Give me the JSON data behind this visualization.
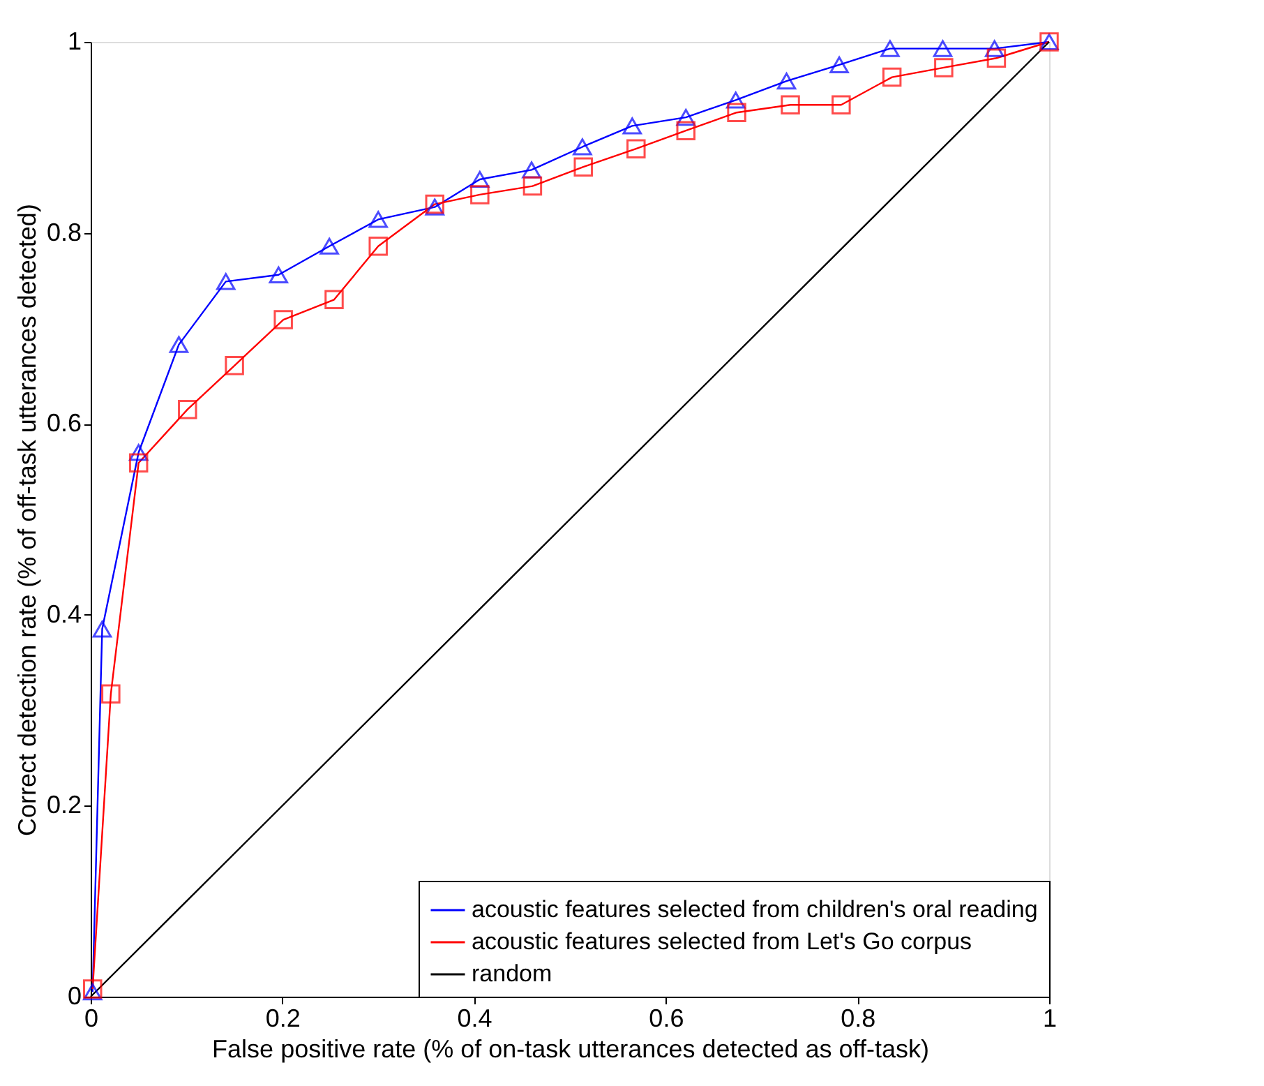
{
  "chart_data": {
    "type": "line",
    "xlabel": "False positive rate (% of on-task utterances detected as off-task)",
    "ylabel": "Correct detection rate (% of off-task utterances detected)",
    "xlim": [
      0,
      1
    ],
    "ylim": [
      0,
      1
    ],
    "xticks": [
      0,
      0.2,
      0.4,
      0.6,
      0.8,
      1
    ],
    "yticks": [
      0,
      0.2,
      0.4,
      0.6,
      0.8,
      1
    ],
    "grid": false,
    "legend": "bottom right",
    "series": [
      {
        "name": "acoustic features selected from children's oral reading",
        "color": "#0000ff",
        "marker": "triangle",
        "x": [
          0.002,
          0.012,
          0.05,
          0.092,
          0.141,
          0.196,
          0.249,
          0.3,
          0.359,
          0.406,
          0.46,
          0.513,
          0.565,
          0.621,
          0.673,
          0.726,
          0.781,
          0.834,
          0.889,
          0.943,
          1
        ],
        "values": [
          0.005,
          0.385,
          0.57,
          0.683,
          0.749,
          0.756,
          0.786,
          0.814,
          0.827,
          0.856,
          0.866,
          0.89,
          0.912,
          0.921,
          0.939,
          0.959,
          0.976,
          0.993,
          0.993,
          0.993,
          1
        ]
      },
      {
        "name": "acoustic features selected from Let's Go corpus",
        "color": "#ff0000",
        "marker": "square",
        "x": [
          0.002,
          0.021,
          0.05,
          0.101,
          0.15,
          0.201,
          0.254,
          0.3,
          0.359,
          0.406,
          0.461,
          0.514,
          0.569,
          0.621,
          0.674,
          0.73,
          0.783,
          0.836,
          0.89,
          0.945,
          1
        ],
        "values": [
          0.008,
          0.317,
          0.559,
          0.615,
          0.661,
          0.709,
          0.73,
          0.786,
          0.83,
          0.84,
          0.849,
          0.869,
          0.888,
          0.907,
          0.926,
          0.934,
          0.934,
          0.963,
          0.973,
          0.983,
          1
        ]
      },
      {
        "name": "random",
        "color": "#000000",
        "marker": "none",
        "x": [
          0,
          1
        ],
        "values": [
          0,
          1
        ]
      }
    ]
  }
}
